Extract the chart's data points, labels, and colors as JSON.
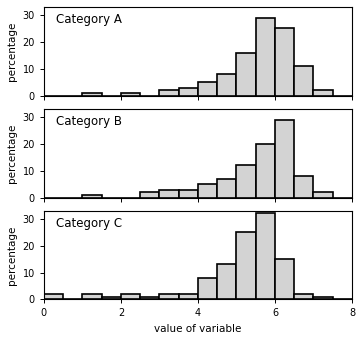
{
  "categories": [
    "Category A",
    "Category B",
    "Category C"
  ],
  "bin_edges": [
    0.0,
    0.5,
    1.0,
    1.5,
    2.0,
    2.5,
    3.0,
    3.5,
    4.0,
    4.5,
    5.0,
    5.5,
    6.0,
    6.5,
    7.0,
    7.5,
    8.0
  ],
  "heights": [
    [
      0,
      0,
      1,
      0,
      1,
      0,
      2,
      3,
      5,
      8,
      16,
      29,
      25,
      11,
      2,
      0
    ],
    [
      0,
      0,
      1,
      0,
      0,
      2,
      3,
      3,
      5,
      7,
      12,
      20,
      29,
      8,
      2,
      0
    ],
    [
      2,
      0,
      2,
      1,
      2,
      1,
      2,
      2,
      8,
      13,
      25,
      32,
      15,
      2,
      1,
      0
    ]
  ],
  "bar_color": "#d3d3d3",
  "edge_color": "#000000",
  "edge_width": 1.2,
  "ylabel": "percentage",
  "xlabel": "value of variable",
  "xlim": [
    0,
    8
  ],
  "ylim": [
    0,
    33
  ],
  "yticks": [
    0,
    10,
    20,
    30
  ],
  "xticks": [
    0,
    2,
    4,
    6,
    8
  ],
  "label_fontsize": 7.5,
  "tick_fontsize": 7,
  "title_fontsize": 8.5,
  "figsize": [
    3.62,
    3.41
  ],
  "dpi": 100
}
